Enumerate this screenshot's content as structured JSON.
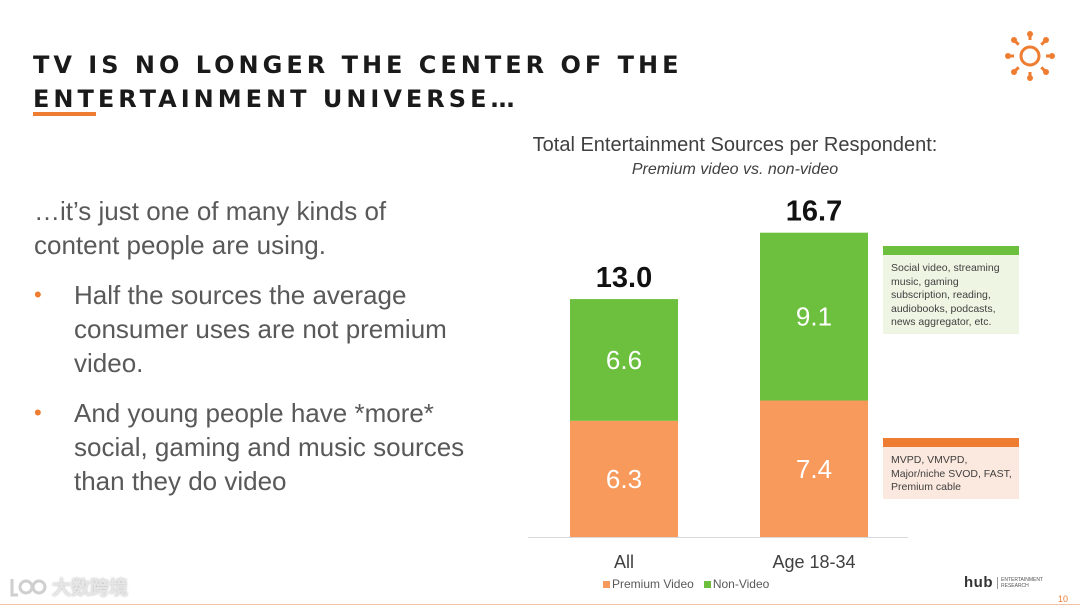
{
  "slide": {
    "title": "TV IS NO LONGER THE CENTER OF THE ENTERTAINMENT UNIVERSE…",
    "lead": "…it’s just one of many kinds of content people are using.",
    "bullets": [
      "Half the sources the average consumer uses are not premium video.",
      "And young people have *more* social, gaming and music sources than they do video"
    ],
    "bullet_glyph": "•",
    "page_number": "10",
    "watermark_text": "大数跨境",
    "brand": {
      "word": "hub",
      "tagline": "ENTERTAINMENT RESEARCH"
    },
    "accent_color": "#ef7d31"
  },
  "chart_data": {
    "type": "bar",
    "stacked": true,
    "title": "Total Entertainment Sources per Respondent:",
    "subtitle": "Premium video vs. non-video",
    "categories": [
      "All",
      "Age 18-34"
    ],
    "series": [
      {
        "name": "Premium Video",
        "values": [
          6.3,
          7.4
        ],
        "color": "#f79a5b"
      },
      {
        "name": "Non-Video",
        "values": [
          6.6,
          9.1
        ],
        "color": "#6cc03e"
      }
    ],
    "totals": [
      13.0,
      16.7
    ],
    "total_labels": [
      "13.0",
      "16.7"
    ],
    "value_labels": [
      [
        "6.3",
        "7.4"
      ],
      [
        "6.6",
        "9.1"
      ]
    ],
    "ylim": [
      0,
      17.5
    ],
    "grid": false,
    "legend_position": "bottom",
    "annotations": {
      "non_video": "Social video, streaming music, gaming subscription, reading, audiobooks, podcasts, news aggregator, etc.",
      "premium_video": "MVPD, VMVPD, Major/niche SVOD, FAST, Premium cable"
    }
  }
}
